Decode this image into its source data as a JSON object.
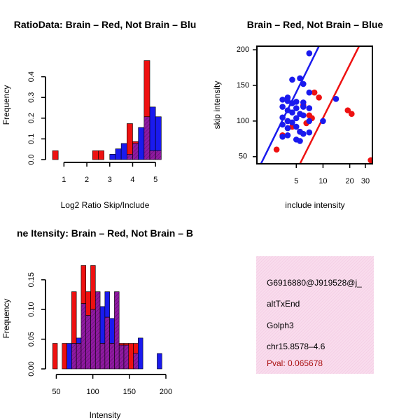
{
  "colors": {
    "red": "#ee1111",
    "blue": "#1a1aee",
    "overlap": "#8e1aa0",
    "info_bg": "#f9dced",
    "pval": "#aa1111"
  },
  "chart_data": [
    {
      "type": "bar",
      "id": "ratio_hist",
      "title": "RatioData: Brain – Red, Not Brain – Blu",
      "xlabel": "Log2 Ratio Skip/Include",
      "ylabel": "Frequency",
      "xlim": [
        0.5,
        5.3
      ],
      "ylim": [
        0,
        0.49
      ],
      "xticks": [
        1,
        2,
        3,
        4,
        5
      ],
      "yticks": [
        0.0,
        0.1,
        0.2,
        0.3,
        0.4
      ],
      "ytick_labels": [
        "0.0",
        "0.1",
        "0.2",
        "0.3",
        "0.4"
      ],
      "bin_width": 0.25,
      "series": [
        {
          "name": "Brain",
          "color": "red",
          "bins": [
            [
              0.5,
              0.043
            ],
            [
              2.25,
              0.043
            ],
            [
              2.5,
              0.043
            ],
            [
              3.75,
              0.174
            ],
            [
              4.0,
              0.087
            ],
            [
              4.5,
              0.478
            ],
            [
              4.75,
              0.043
            ],
            [
              5.0,
              0.043
            ]
          ]
        },
        {
          "name": "Not Brain",
          "color": "blue",
          "bins": [
            [
              3.0,
              0.026
            ],
            [
              3.25,
              0.052
            ],
            [
              3.5,
              0.078
            ],
            [
              3.75,
              0.026
            ],
            [
              4.0,
              0.078
            ],
            [
              4.25,
              0.155
            ],
            [
              4.5,
              0.207
            ],
            [
              4.75,
              0.254
            ],
            [
              5.0,
              0.207
            ]
          ]
        }
      ]
    },
    {
      "type": "scatter",
      "id": "intensity_scatter",
      "title": "Brain – Red, Not Brain – Blue",
      "xlabel": "include intensity",
      "ylabel": "skip intensity",
      "xlim": [
        1.8,
        36
      ],
      "ylim": [
        40,
        205
      ],
      "xticks": [
        5,
        10,
        20,
        30
      ],
      "yticks": [
        50,
        100,
        150,
        200
      ],
      "lines": [
        {
          "name": "Not Brain fit",
          "color": "blue",
          "points": [
            [
              2.0,
              40
            ],
            [
              9.0,
              205
            ]
          ]
        },
        {
          "name": "Brain fit",
          "color": "red",
          "points": [
            [
              5.5,
              40
            ],
            [
              25.5,
              205
            ]
          ]
        }
      ],
      "series": [
        {
          "name": "Brain",
          "color": "red",
          "points": [
            [
              34.5,
              45
            ],
            [
              19,
              115
            ],
            [
              21,
              110
            ],
            [
              7,
              108
            ],
            [
              7.5,
              104
            ],
            [
              8,
              140
            ],
            [
              9,
              133
            ],
            [
              6,
              122
            ],
            [
              4,
              100
            ],
            [
              5.5,
              85
            ],
            [
              3,
              60
            ],
            [
              4.5,
              92
            ],
            [
              6.5,
              97
            ],
            [
              3.5,
              80
            ]
          ]
        },
        {
          "name": "Not Brain",
          "color": "blue",
          "points": [
            [
              7,
              195
            ],
            [
              4.5,
              158
            ],
            [
              5.5,
              160
            ],
            [
              6,
              152
            ],
            [
              4,
              133
            ],
            [
              3.5,
              130
            ],
            [
              4,
              128
            ],
            [
              5,
              127
            ],
            [
              6,
              126
            ],
            [
              4.5,
              125
            ],
            [
              3.5,
              120
            ],
            [
              5,
              118
            ],
            [
              6,
              120
            ],
            [
              7,
              118
            ],
            [
              4,
              115
            ],
            [
              4.5,
              112
            ],
            [
              5.5,
              110
            ],
            [
              3.5,
              105
            ],
            [
              4,
              100
            ],
            [
              5,
              104
            ],
            [
              6,
              108
            ],
            [
              4.5,
              98
            ],
            [
              3.5,
              95
            ],
            [
              4,
              90
            ],
            [
              5,
              92
            ],
            [
              5.5,
              85
            ],
            [
              4,
              80
            ],
            [
              3.5,
              78
            ],
            [
              6,
              82
            ],
            [
              7,
              84
            ],
            [
              5,
              74
            ],
            [
              5.5,
              72
            ],
            [
              7,
              140
            ],
            [
              14,
              131
            ],
            [
              10,
              100
            ],
            [
              7,
              100
            ]
          ]
        }
      ]
    },
    {
      "type": "bar",
      "id": "intensity_hist",
      "title": "ne Itensity: Brain – Red, Not Brain – B",
      "xlabel": "Intensity",
      "ylabel": "Frequency",
      "xlim": [
        40,
        200
      ],
      "ylim": [
        0,
        0.185
      ],
      "xticks": [
        50,
        100,
        150,
        200
      ],
      "yticks": [
        0.0,
        0.05,
        0.1,
        0.15
      ],
      "ytick_labels": [
        "0.00",
        "0.05",
        "0.10",
        "0.15"
      ],
      "bin_width": 6.5,
      "series": [
        {
          "name": "Brain",
          "color": "red",
          "bins": [
            [
              45,
              0.043
            ],
            [
              58,
              0.043
            ],
            [
              71,
              0.13
            ],
            [
              77.5,
              0.043
            ],
            [
              84,
              0.174
            ],
            [
              90.5,
              0.13
            ],
            [
              97,
              0.174
            ],
            [
              103.5,
              0.13
            ],
            [
              110,
              0.043
            ],
            [
              116.5,
              0.087
            ],
            [
              123,
              0.043
            ],
            [
              129.5,
              0.13
            ],
            [
              136,
              0.043
            ],
            [
              142.5,
              0.043
            ],
            [
              149,
              0.043
            ],
            [
              155.5,
              0.043
            ]
          ]
        },
        {
          "name": "Not Brain",
          "color": "blue",
          "bins": [
            [
              64.5,
              0.043
            ],
            [
              71,
              0.043
            ],
            [
              77.5,
              0.052
            ],
            [
              84,
              0.11
            ],
            [
              90.5,
              0.09
            ],
            [
              97,
              0.1
            ],
            [
              103.5,
              0.13
            ],
            [
              110,
              0.105
            ],
            [
              116.5,
              0.13
            ],
            [
              123,
              0.085
            ],
            [
              129.5,
              0.13
            ],
            [
              136,
              0.04
            ],
            [
              142.5,
              0.04
            ],
            [
              155.5,
              0.026
            ],
            [
              162,
              0.052
            ],
            [
              188,
              0.026
            ]
          ]
        }
      ]
    }
  ],
  "info_box": {
    "event_id": "G6916880@J919528@j_",
    "event_type": "altTxEnd",
    "gene": "Golph3",
    "location": "chr15.8578–4.6",
    "pval": "Pval: 0.065678"
  }
}
